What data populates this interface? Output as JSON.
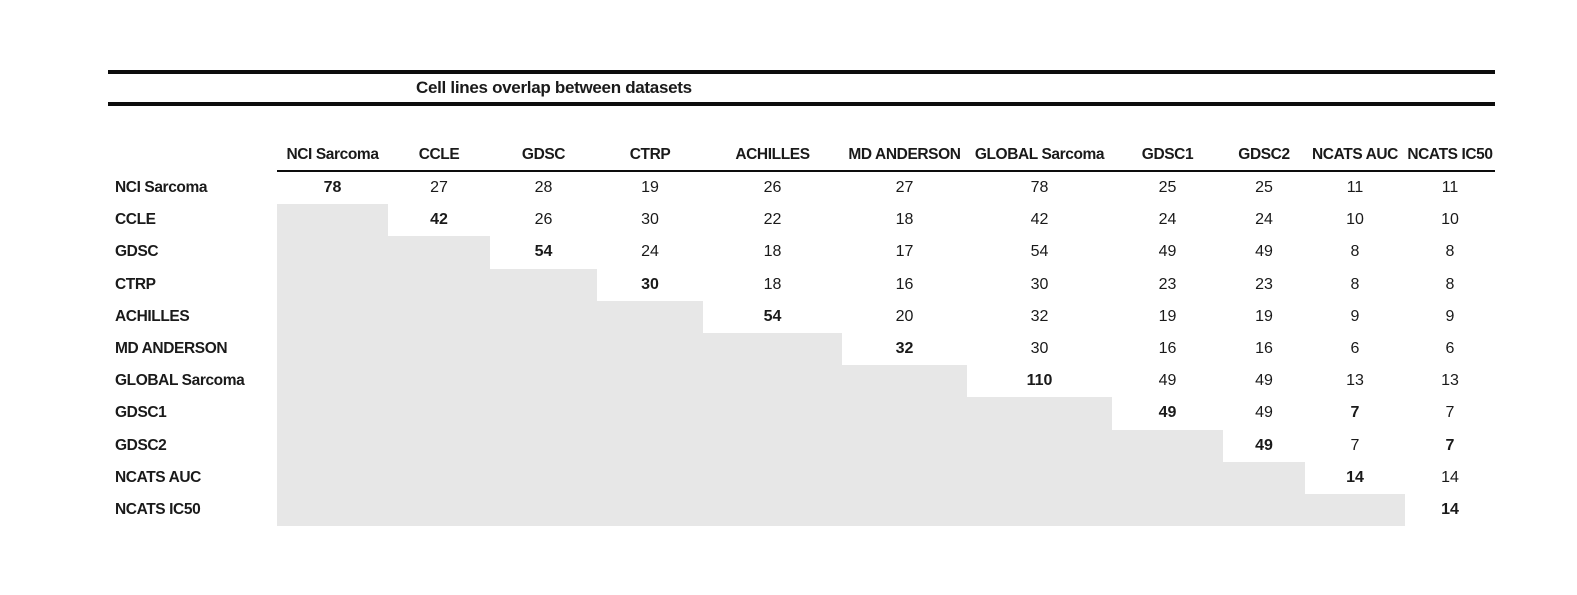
{
  "chart_data": {
    "type": "table",
    "title": "Cell lines overlap between datasets",
    "columns": [
      "NCI Sarcoma",
      "CCLE",
      "GDSC",
      "CTRP",
      "ACHILLES",
      "MD ANDERSON",
      "GLOBAL Sarcoma",
      "GDSC1",
      "GDSC2",
      "NCATS AUC",
      "NCATS IC50"
    ],
    "rows": [
      {
        "label": "NCI Sarcoma",
        "values": [
          78,
          27,
          28,
          19,
          26,
          27,
          78,
          25,
          25,
          11,
          11
        ],
        "bold_cols": [
          0
        ]
      },
      {
        "label": "CCLE",
        "values": [
          null,
          42,
          26,
          30,
          22,
          18,
          42,
          24,
          24,
          10,
          10
        ],
        "bold_cols": [
          1
        ]
      },
      {
        "label": "GDSC",
        "values": [
          null,
          null,
          54,
          24,
          18,
          17,
          54,
          49,
          49,
          8,
          8
        ],
        "bold_cols": [
          2
        ]
      },
      {
        "label": "CTRP",
        "values": [
          null,
          null,
          null,
          30,
          18,
          16,
          30,
          23,
          23,
          8,
          8
        ],
        "bold_cols": [
          3
        ]
      },
      {
        "label": "ACHILLES",
        "values": [
          null,
          null,
          null,
          null,
          54,
          20,
          32,
          19,
          19,
          9,
          9
        ],
        "bold_cols": [
          4
        ]
      },
      {
        "label": "MD ANDERSON",
        "values": [
          null,
          null,
          null,
          null,
          null,
          32,
          30,
          16,
          16,
          6,
          6
        ],
        "bold_cols": [
          5
        ]
      },
      {
        "label": "GLOBAL Sarcoma",
        "values": [
          null,
          null,
          null,
          null,
          null,
          null,
          110,
          49,
          49,
          13,
          13
        ],
        "bold_cols": [
          6
        ]
      },
      {
        "label": "GDSC1",
        "values": [
          null,
          null,
          null,
          null,
          null,
          null,
          null,
          49,
          49,
          7,
          7
        ],
        "bold_cols": [
          7,
          9
        ]
      },
      {
        "label": "GDSC2",
        "values": [
          null,
          null,
          null,
          null,
          null,
          null,
          null,
          null,
          49,
          7,
          7
        ],
        "bold_cols": [
          8,
          10
        ]
      },
      {
        "label": "NCATS AUC",
        "values": [
          null,
          null,
          null,
          null,
          null,
          null,
          null,
          null,
          null,
          14,
          14
        ],
        "bold_cols": [
          9
        ]
      },
      {
        "label": "NCATS IC50",
        "values": [
          null,
          null,
          null,
          null,
          null,
          null,
          null,
          null,
          null,
          null,
          14
        ],
        "bold_cols": [
          10
        ]
      }
    ]
  },
  "colors": {
    "text": "#1a1a1a",
    "rule": "#0d0d0d",
    "shaded_cell": "#e7e7e7",
    "background": "#ffffff"
  }
}
